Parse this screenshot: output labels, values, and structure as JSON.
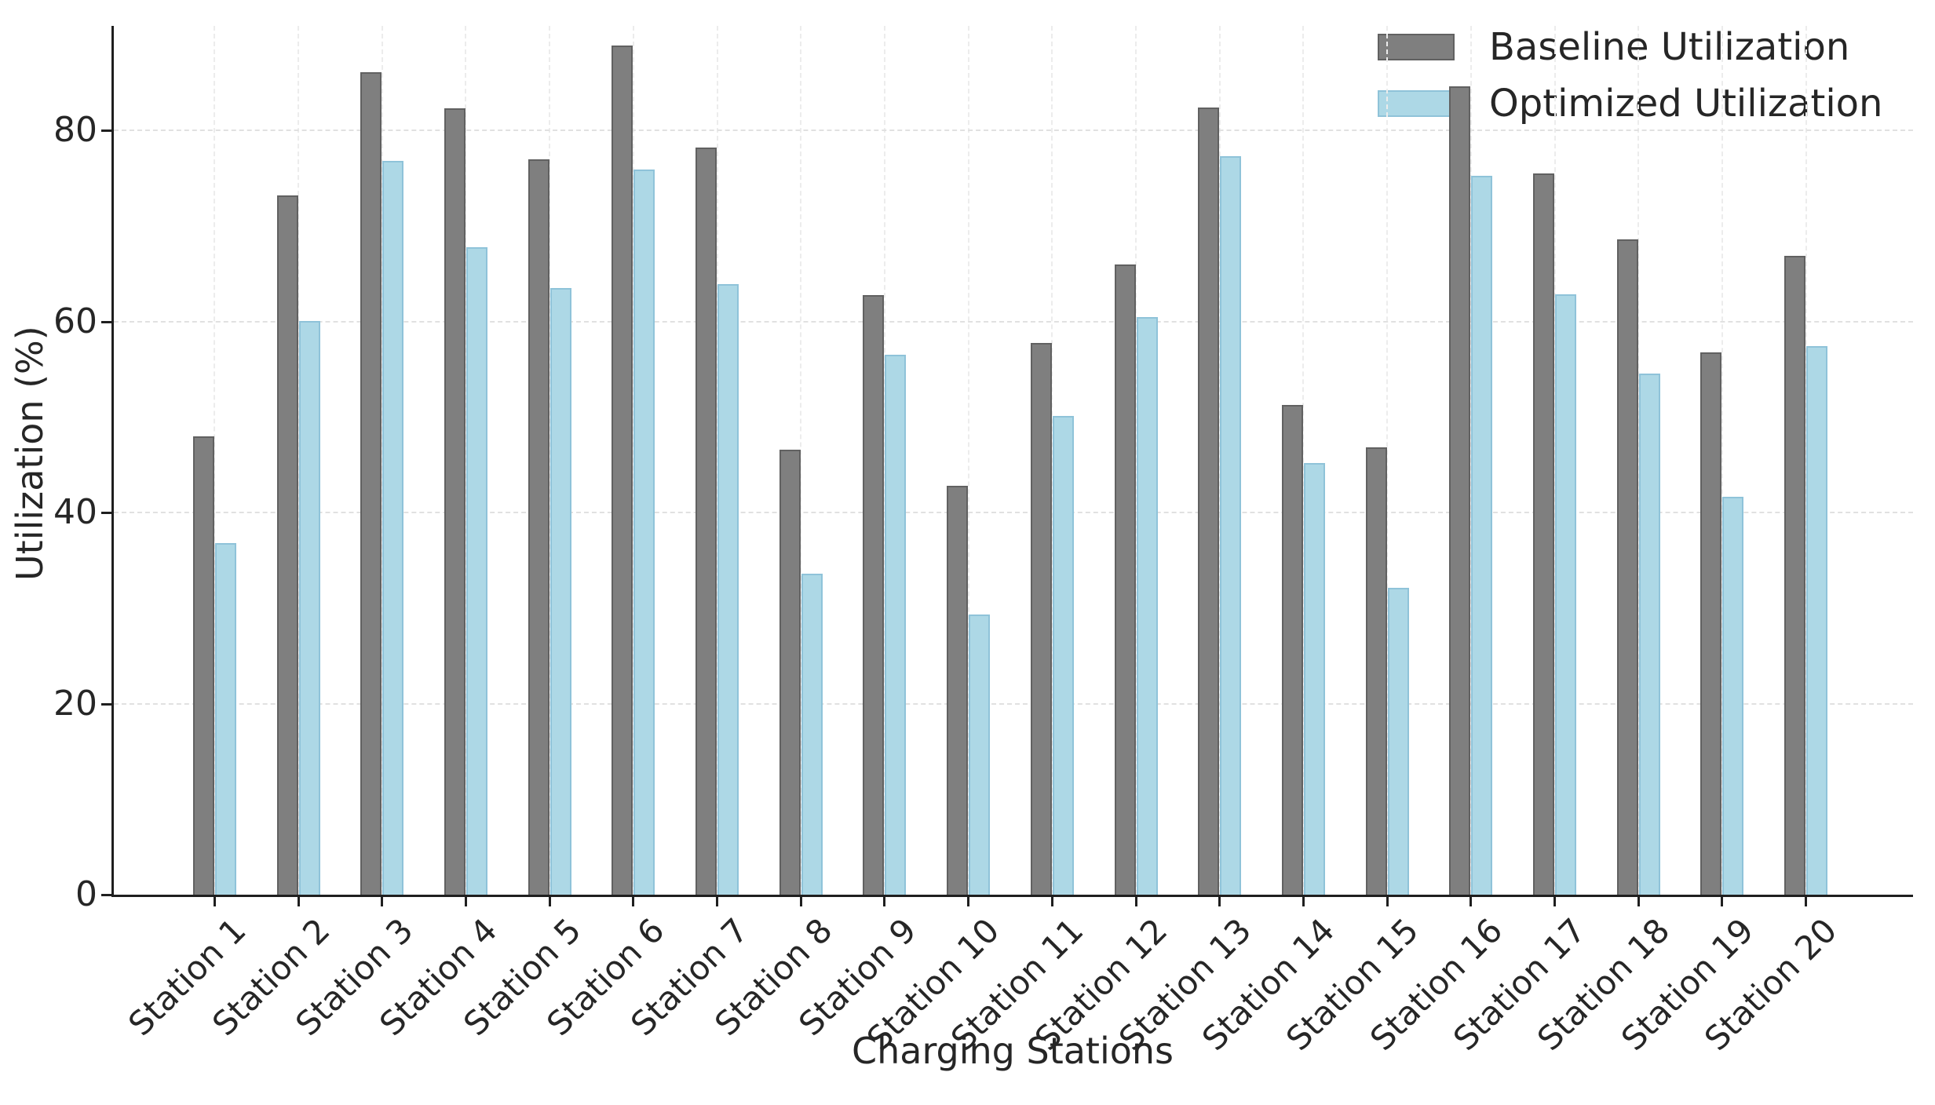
{
  "figure": {
    "background": "#ffffff",
    "text_color": "#262626",
    "spine_color": "#1f1f1f",
    "grid_color_h": "#e1e1e1",
    "grid_color_v": "#ececec"
  },
  "chart_data": {
    "type": "bar",
    "title": "",
    "xlabel": "Charging Stations",
    "ylabel": "Utilization (%)",
    "categories": [
      "Station 1",
      "Station 2",
      "Station 3",
      "Station 4",
      "Station 5",
      "Station 6",
      "Station 7",
      "Station 8",
      "Station 9",
      "Station 10",
      "Station 11",
      "Station 12",
      "Station 13",
      "Station 14",
      "Station 15",
      "Station 16",
      "Station 17",
      "Station 18",
      "Station 19",
      "Station 20"
    ],
    "series": [
      {
        "name": "Baseline Utilization",
        "color": "#7f7f7f",
        "edge_color": "#616161",
        "values": [
          48.0,
          73.2,
          86.1,
          82.3,
          77.0,
          88.9,
          78.2,
          46.6,
          62.8,
          42.8,
          57.8,
          66.0,
          82.4,
          51.3,
          46.8,
          84.6,
          75.5,
          68.6,
          56.8,
          66.9
        ]
      },
      {
        "name": "Optimized Utilization",
        "color": "#add8e6",
        "edge_color": "#8fc3d9",
        "values": [
          36.8,
          60.1,
          76.8,
          67.8,
          63.5,
          75.9,
          63.9,
          33.6,
          56.5,
          29.3,
          50.1,
          60.5,
          77.3,
          45.2,
          32.1,
          75.3,
          62.9,
          54.6,
          41.7,
          57.4
        ]
      }
    ],
    "yticks": [
      0,
      20,
      40,
      60,
      80
    ],
    "ylim": [
      0,
      91
    ],
    "grid": true,
    "legend_position": "upper right"
  }
}
